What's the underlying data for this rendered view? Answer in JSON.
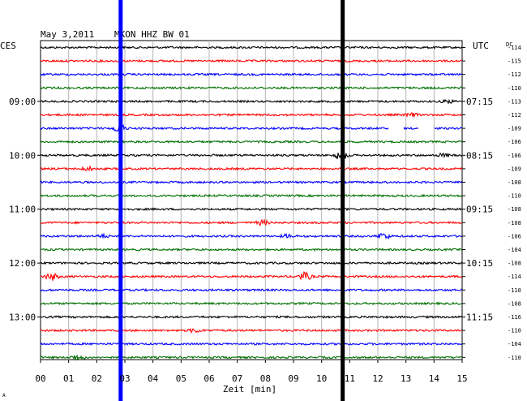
{
  "header": {
    "date": "May 3,2011",
    "station": "MKON HHZ BW 01",
    "left_zone": "CES",
    "right_zone": "UTC",
    "dc_label": "DC"
  },
  "chart_data": {
    "type": "line",
    "title": "May 3,2011   MKON HHZ BW 01",
    "xlabel": "Zeit [min]",
    "ylabel": "",
    "xlim": [
      0,
      15
    ],
    "x_ticks": [
      "00",
      "01",
      "02",
      "03",
      "04",
      "05",
      "06",
      "07",
      "08",
      "09",
      "10",
      "11",
      "12",
      "13",
      "14",
      "15"
    ],
    "grid": true,
    "trace_colors": [
      "#000000",
      "#ff0000",
      "#0000ff",
      "#007000"
    ],
    "left_time_labels": [
      {
        "row": 4,
        "label": "09:00"
      },
      {
        "row": 8,
        "label": "10:00"
      },
      {
        "row": 12,
        "label": "11:00"
      },
      {
        "row": 16,
        "label": "12:00"
      },
      {
        "row": 20,
        "label": "13:00"
      }
    ],
    "right_time_labels": [
      {
        "row": 4,
        "label": "07:15"
      },
      {
        "row": 8,
        "label": "08:15"
      },
      {
        "row": 12,
        "label": "09:15"
      },
      {
        "row": 16,
        "label": "10:15"
      },
      {
        "row": 20,
        "label": "11:15"
      }
    ],
    "dc_offsets": [
      -114,
      -115,
      -112,
      -110,
      -113,
      -112,
      -109,
      -106,
      -106,
      -109,
      -108,
      -110,
      -108,
      -108,
      -106,
      -104,
      -108,
      -114,
      -110,
      -108,
      -116,
      -110,
      -104,
      -110
    ],
    "vertical_markers": [
      {
        "minute": 2.85,
        "color": "#0000ff"
      },
      {
        "minute": 10.75,
        "color": "#000000"
      }
    ],
    "events": [
      {
        "row": 21,
        "minute": 5.5,
        "amp": 2.5
      },
      {
        "row": 17,
        "minute": 0.4,
        "amp": 4.5
      },
      {
        "row": 17,
        "minute": 9.4,
        "amp": 5
      },
      {
        "row": 14,
        "minute": 12.2,
        "amp": 4
      },
      {
        "row": 14,
        "minute": 2.2,
        "amp": 2
      },
      {
        "row": 14,
        "minute": 8.8,
        "amp": 2
      },
      {
        "row": 13,
        "minute": 7.9,
        "amp": 3
      },
      {
        "row": 23,
        "minute": 1.3,
        "amp": 3.5
      },
      {
        "row": 8,
        "minute": 10.7,
        "amp": 7
      },
      {
        "row": 9,
        "minute": 1.7,
        "amp": 2.5
      },
      {
        "row": 6,
        "minute": 2.8,
        "amp": 5
      },
      {
        "row": 5,
        "minute": 13.2,
        "amp": 2
      },
      {
        "row": 8,
        "minute": 14.3,
        "amp": 2
      },
      {
        "row": 4,
        "minute": 14.5,
        "amp": 2
      }
    ],
    "gaps": [
      {
        "row": 6,
        "from": 12.4,
        "to": 12.9
      },
      {
        "row": 6,
        "from": 13.45,
        "to": 14.0
      }
    ]
  },
  "footer_mark": "A"
}
